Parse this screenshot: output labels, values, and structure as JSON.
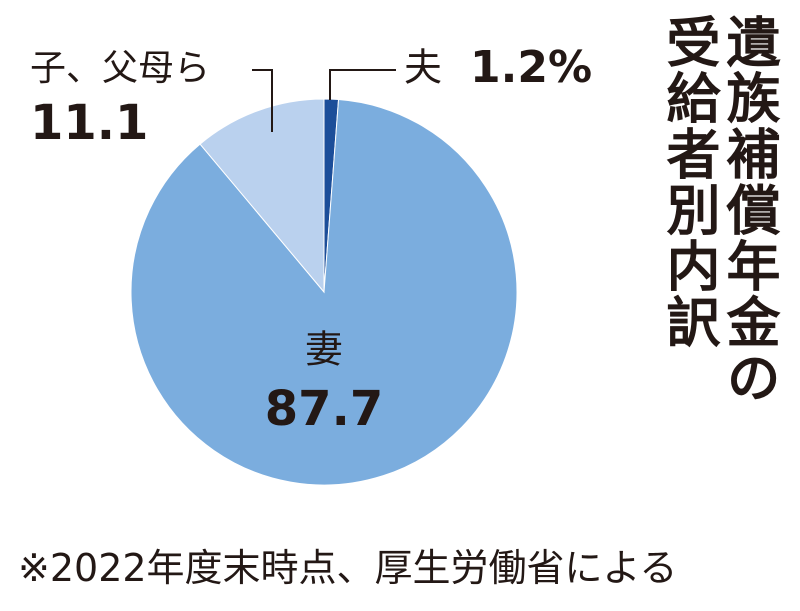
{
  "chart_data": {
    "type": "pie",
    "title": "遺族補償年金の受給者別内訳",
    "categories": [
      "夫",
      "妻",
      "子、父母ら"
    ],
    "values": [
      1.2,
      87.7,
      11.1
    ],
    "value_labels": [
      "1.2%",
      "87.7",
      "11.1"
    ],
    "colors": [
      "#1c4e99",
      "#7badde",
      "#bad1ee"
    ],
    "note": "※2022年度末時点、厚生労働省による"
  }
}
